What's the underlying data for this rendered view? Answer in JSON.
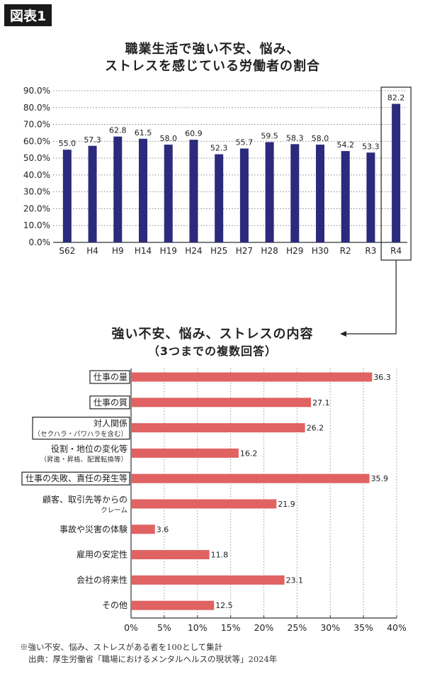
{
  "figure_label": "図表1",
  "chart_data": [
    {
      "type": "bar",
      "title_lines": [
        "職業生活で強い不安、悩み、",
        "ストレスを感じている労働者の割合"
      ],
      "categories": [
        "S62",
        "H4",
        "H9",
        "H14",
        "H19",
        "H24",
        "H25",
        "H27",
        "H28",
        "H29",
        "H30",
        "R2",
        "R3",
        "R4"
      ],
      "values": [
        55.0,
        57.3,
        62.8,
        61.5,
        58.0,
        60.9,
        52.3,
        55.7,
        59.5,
        58.3,
        58.0,
        54.2,
        53.3,
        82.2
      ],
      "value_labels": [
        "55.0",
        "57.3",
        "62.8",
        "61.5",
        "58.0",
        "60.9",
        "52.3",
        "55.7",
        "59.5",
        "58.3",
        "58.0",
        "54.2",
        "53.3",
        "82.2"
      ],
      "ylim": [
        0,
        90
      ],
      "yticks": [
        "0.0%",
        "10.0%",
        "20.0%",
        "30.0%",
        "40.0%",
        "50.0%",
        "60.0%",
        "70.0%",
        "80.0%",
        "90.0%"
      ],
      "grid": true,
      "highlighted_category": "R4",
      "bar_color": "#2b2a7c"
    },
    {
      "type": "bar",
      "orientation": "horizontal",
      "title_lines": [
        "強い不安、悩み、ストレスの内容",
        "（3つまでの複数回答）"
      ],
      "categories": [
        {
          "label": "仕事の量",
          "boxed": true
        },
        {
          "label": "仕事の質",
          "boxed": true
        },
        {
          "label": "対人関係",
          "sub": "（セクハラ・パワハラを含む）",
          "boxed": true
        },
        {
          "label": "役割・地位の変化等",
          "sub": "（昇進・昇格、配置転換等）",
          "boxed": false
        },
        {
          "label": "仕事の失敗、責任の発生等",
          "boxed": true
        },
        {
          "label": "顧客、取引先等からの",
          "sub": "クレーム",
          "boxed": false
        },
        {
          "label": "事故や災害の体験",
          "boxed": false
        },
        {
          "label": "雇用の安定性",
          "boxed": false
        },
        {
          "label": "会社の将来性",
          "boxed": false
        },
        {
          "label": "その他",
          "boxed": false
        }
      ],
      "values": [
        36.3,
        27.1,
        26.2,
        16.2,
        35.9,
        21.9,
        3.6,
        11.8,
        23.1,
        12.5
      ],
      "value_labels": [
        "36.3",
        "27.1",
        "26.2",
        "16.2",
        "35.9",
        "21.9",
        "3.6",
        "11.8",
        "23.1",
        "12.5"
      ],
      "xlim": [
        0,
        40
      ],
      "xticks": [
        "0%",
        "5%",
        "10%",
        "15%",
        "20%",
        "25%",
        "30%",
        "35%",
        "40%"
      ],
      "bar_color": "#e06262"
    }
  ],
  "notes": [
    "※強い不安、悩み、ストレスがある者を100として集計",
    "出典：厚生労働省「職場におけるメンタルヘルスの現状等」2024年"
  ]
}
